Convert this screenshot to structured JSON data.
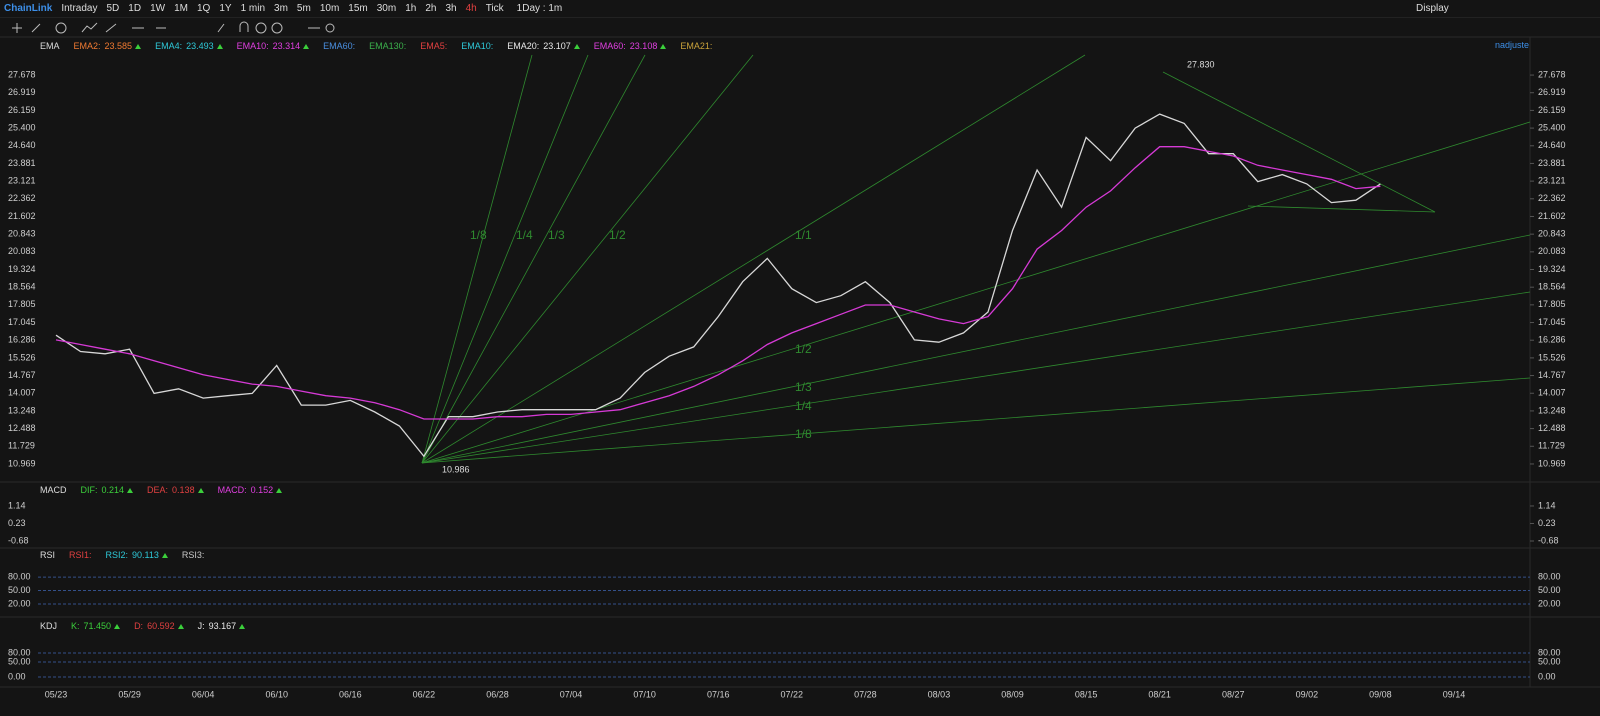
{
  "toolbar": {
    "periods": [
      "Intraday",
      "5D",
      "1D",
      "1W",
      "1M",
      "1Q",
      "1Y",
      "1 min",
      "3m",
      "5m",
      "10m",
      "15m",
      "30m",
      "1h",
      "2h",
      "3h",
      "4h",
      "Tick"
    ],
    "active": "4h",
    "interval": "1Day : 1m",
    "display": "Display"
  },
  "ema_header": {
    "name": "EMA",
    "adjust": "nadjuste",
    "items": [
      {
        "label": "EMA2:",
        "value": "23.585",
        "color": "#f07a32"
      },
      {
        "label": "EMA4:",
        "value": "23.493",
        "color": "#2ec8d8"
      },
      {
        "label": "EMA10:",
        "value": "23.314",
        "color": "#e03fe0"
      },
      {
        "label": "EMA60:",
        "color": "#4a8fe0"
      },
      {
        "label": "EMA130:",
        "color": "#3bb04c"
      },
      {
        "label": "EMA5:",
        "color": "#e04040"
      },
      {
        "label": "EMA10:",
        "color": "#2ec8d8"
      },
      {
        "label": "EMA20:",
        "value": "23.107",
        "color": "#e8e8e8"
      },
      {
        "label": "EMA60:",
        "value": "23.108",
        "color": "#e03fe0"
      },
      {
        "label": "EMA21:",
        "color": "#c9a23a"
      }
    ]
  },
  "macd": {
    "name": "MACD",
    "items": [
      {
        "label": "DIF:",
        "value": "0.214",
        "color": "#3bcf3b"
      },
      {
        "label": "DEA:",
        "value": "0.138",
        "color": "#e04040"
      },
      {
        "label": "MACD:",
        "value": "0.152",
        "color": "#e03fe0"
      }
    ],
    "ylim": [
      -0.94,
      1.45
    ],
    "ticks": [
      {
        "value": 1.14,
        "label": "1.14"
      },
      {
        "value": 0.23,
        "label": "0.23"
      },
      {
        "value": -0.68,
        "label": "-0.68"
      }
    ],
    "dashed": false
  },
  "rsi": {
    "name": "RSI",
    "items": [
      {
        "label": "RSI1:",
        "color": "#e04040"
      },
      {
        "label": "RSI2:",
        "value": "90.113",
        "color": "#2ec8d8"
      },
      {
        "label": "RSI3:",
        "color": "#c8c8c8"
      }
    ],
    "ylim": [
      2,
      107
    ],
    "ticks": [
      {
        "value": 80,
        "label": "80.00"
      },
      {
        "value": 50,
        "label": "50.00"
      },
      {
        "value": 20,
        "label": "20.00"
      }
    ],
    "dashed": true
  },
  "kdj": {
    "name": "KDJ",
    "items": [
      {
        "label": "K:",
        "value": "71.450",
        "color": "#3bcf3b"
      },
      {
        "label": "D:",
        "value": "60.592",
        "color": "#e04040"
      },
      {
        "label": "J:",
        "value": "93.167",
        "color": "#e8e8e8"
      }
    ],
    "ylim": [
      -33,
      123
    ],
    "ticks": [
      {
        "value": 80,
        "label": "80.00"
      },
      {
        "value": 50,
        "label": "50.00"
      },
      {
        "value": 0,
        "label": "0.00"
      }
    ],
    "dashed": true
  },
  "chart_data": {
    "type": "line",
    "categories": [
      "05/23",
      null,
      null,
      "05/29",
      null,
      null,
      "06/04",
      null,
      null,
      "06/10",
      null,
      null,
      "06/16",
      null,
      null,
      "06/22",
      null,
      null,
      "06/28",
      null,
      null,
      "07/04",
      null,
      null,
      "07/10",
      null,
      null,
      "07/16",
      null,
      null,
      "07/22",
      null,
      null,
      "07/28",
      null,
      null,
      "08/03",
      null,
      null,
      "08/09",
      null,
      null,
      "08/15",
      null,
      null,
      "08/21",
      null,
      null,
      "08/27",
      null,
      null,
      "09/02",
      null,
      null,
      "09/08",
      null,
      null,
      "09/14"
    ],
    "series": [
      {
        "name": "ChainLink",
        "color": "#d8d8d8",
        "values": [
          16.5,
          15.8,
          15.7,
          15.9,
          14.0,
          14.2,
          13.8,
          13.9,
          14.0,
          15.2,
          13.5,
          13.5,
          13.7,
          13.2,
          12.6,
          11.3,
          13.0,
          13.0,
          13.2,
          13.3,
          13.3,
          13.3,
          13.3,
          13.8,
          14.9,
          15.6,
          16.0,
          17.3,
          18.8,
          19.8,
          18.5,
          17.9,
          18.2,
          18.8,
          17.9,
          16.3,
          16.2,
          16.6,
          17.5,
          21.0,
          23.6,
          22.0,
          25.0,
          24.0,
          25.4,
          26.0,
          25.6,
          24.3,
          24.3,
          23.1,
          23.4,
          23.0,
          22.2,
          22.3,
          23.0,
          null,
          null,
          null
        ]
      },
      {
        "color": "#d63ad6",
        "values": [
          16.3,
          16.1,
          15.9,
          15.7,
          15.4,
          15.1,
          14.8,
          14.6,
          14.4,
          14.3,
          14.1,
          13.9,
          13.8,
          13.6,
          13.3,
          12.9,
          12.9,
          12.9,
          13.0,
          13.0,
          13.1,
          13.1,
          13.2,
          13.3,
          13.6,
          13.9,
          14.3,
          14.8,
          15.4,
          16.1,
          16.6,
          17.0,
          17.4,
          17.8,
          17.8,
          17.5,
          17.2,
          17.0,
          17.3,
          18.5,
          20.2,
          21.0,
          22.0,
          22.7,
          23.7,
          24.6,
          24.6,
          24.4,
          24.2,
          23.8,
          23.6,
          23.4,
          23.2,
          22.8,
          22.9,
          null,
          null,
          null
        ]
      }
    ],
    "ylim": [
      10.28,
      28.54
    ],
    "yticks": [
      {
        "value": 27.678,
        "label": "27.678"
      },
      {
        "value": 26.919,
        "label": "26.919"
      },
      {
        "value": 26.159,
        "label": "26.159"
      },
      {
        "value": 25.4,
        "label": "25.400"
      },
      {
        "value": 24.64,
        "label": "24.640"
      },
      {
        "value": 23.881,
        "label": "23.881"
      },
      {
        "value": 23.121,
        "label": "23.121"
      },
      {
        "value": 22.362,
        "label": "22.362"
      },
      {
        "value": 21.602,
        "label": "21.602"
      },
      {
        "value": 20.843,
        "label": "20.843"
      },
      {
        "value": 20.083,
        "label": "20.083"
      },
      {
        "value": 19.324,
        "label": "19.324"
      },
      {
        "value": 18.564,
        "label": "18.564"
      },
      {
        "value": 17.805,
        "label": "17.805"
      },
      {
        "value": 17.045,
        "label": "17.045"
      },
      {
        "value": 16.286,
        "label": "16.286"
      },
      {
        "value": 15.526,
        "label": "15.526"
      },
      {
        "value": 14.767,
        "label": "14.767"
      },
      {
        "value": 14.007,
        "label": "14.007"
      },
      {
        "value": 13.248,
        "label": "13.248"
      },
      {
        "value": 12.488,
        "label": "12.488"
      },
      {
        "value": 11.729,
        "label": "11.729"
      },
      {
        "value": 10.969,
        "label": "10.969"
      }
    ],
    "grid": false,
    "annotations": [
      "27.830",
      "10.986",
      "1/8",
      "1/4",
      "1/3",
      "1/2",
      "1/1",
      "1/2",
      "1/3",
      "1/4",
      "1/8"
    ]
  }
}
